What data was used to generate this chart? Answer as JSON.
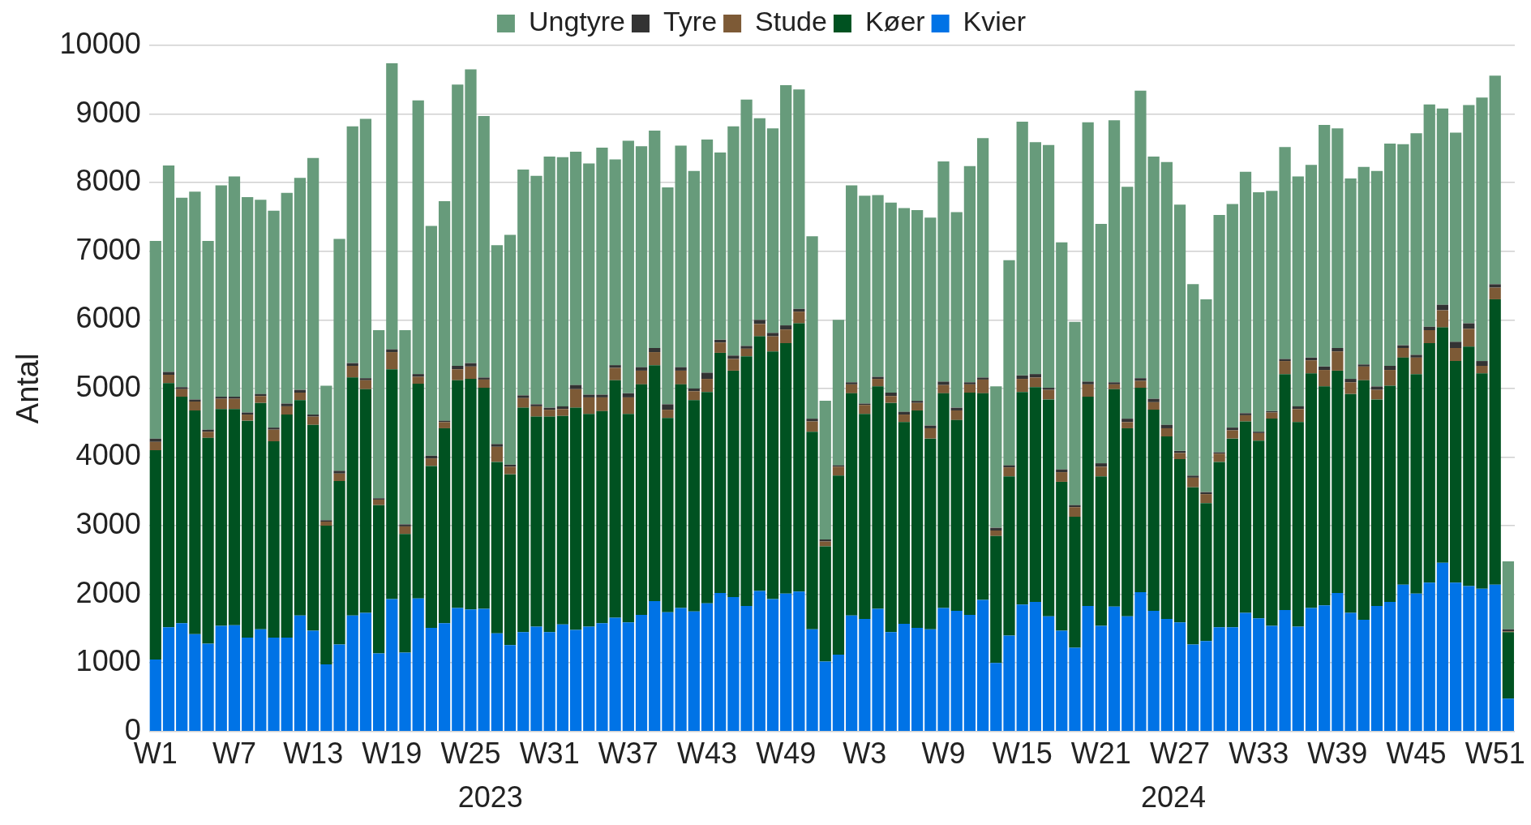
{
  "chart_data": {
    "type": "bar",
    "stacked": true,
    "ylabel": "Antal",
    "legend": "top",
    "grid": "y",
    "ylim": [
      0,
      10000
    ],
    "yticks": [
      0,
      1000,
      2000,
      3000,
      4000,
      5000,
      6000,
      7000,
      8000,
      9000,
      10000
    ],
    "annotations": [
      "2023",
      "2024"
    ],
    "categories": [
      "W1",
      null,
      null,
      null,
      null,
      null,
      "W7",
      null,
      null,
      null,
      null,
      null,
      "W13",
      null,
      null,
      null,
      null,
      null,
      "W19",
      null,
      null,
      null,
      null,
      null,
      "W25",
      null,
      null,
      null,
      null,
      null,
      "W31",
      null,
      null,
      null,
      null,
      null,
      "W37",
      null,
      null,
      null,
      null,
      null,
      "W43",
      null,
      null,
      null,
      null,
      null,
      "W49",
      null,
      null,
      null,
      null,
      null,
      "W3",
      null,
      null,
      null,
      null,
      null,
      "W9",
      null,
      null,
      null,
      null,
      null,
      "W15",
      null,
      null,
      null,
      null,
      null,
      "W21",
      null,
      null,
      null,
      null,
      null,
      "W27",
      null,
      null,
      null,
      null,
      null,
      "W33",
      null,
      null,
      null,
      null,
      null,
      "W39",
      null,
      null,
      null,
      null,
      null,
      "W45",
      null,
      null,
      null,
      null,
      null,
      "W51",
      null
    ],
    "series": [
      {
        "name": "Kvier",
        "color": "#0073e6",
        "values": [
          1050,
          1520,
          1580,
          1420,
          1280,
          1540,
          1550,
          1370,
          1490,
          1370,
          1370,
          1690,
          1470,
          980,
          1270,
          1690,
          1730,
          1140,
          1930,
          1150,
          1940,
          1510,
          1580,
          1800,
          1780,
          1790,
          1430,
          1260,
          1450,
          1530,
          1450,
          1560,
          1480,
          1530,
          1580,
          1660,
          1590,
          1700,
          1900,
          1740,
          1800,
          1750,
          1870,
          2020,
          1960,
          1830,
          2050,
          1930,
          2010,
          2040,
          1490,
          1020,
          1120,
          1690,
          1640,
          1790,
          1450,
          1570,
          1510,
          1490,
          1800,
          1760,
          1700,
          1920,
          1000,
          1400,
          1850,
          1890,
          1680,
          1470,
          1220,
          1830,
          1540,
          1820,
          1680,
          2030,
          1760,
          1640,
          1590,
          1270,
          1320,
          1520,
          1520,
          1730,
          1650,
          1540,
          1770,
          1530,
          1800,
          1840,
          2020,
          1730,
          1630,
          1830,
          1890,
          2140,
          2010,
          2170,
          2460,
          2170,
          2120,
          2080,
          2140,
          480
        ]
      },
      {
        "name": "Køer",
        "color": "#005221",
        "values": [
          3050,
          3560,
          3300,
          3260,
          3000,
          3160,
          3150,
          3160,
          3300,
          2860,
          3250,
          3140,
          3000,
          2020,
          2380,
          3470,
          3260,
          2160,
          3350,
          1730,
          3130,
          2360,
          2840,
          3320,
          3360,
          3220,
          2500,
          2490,
          3270,
          3060,
          3140,
          3040,
          3240,
          3100,
          3090,
          3460,
          3040,
          3360,
          3440,
          2830,
          3260,
          3080,
          3080,
          3500,
          3300,
          3640,
          3710,
          3610,
          3650,
          3910,
          2880,
          1680,
          2610,
          3240,
          2990,
          3240,
          3340,
          2940,
          3170,
          2780,
          3130,
          2780,
          3240,
          3010,
          1850,
          2320,
          3100,
          3130,
          3160,
          2170,
          1910,
          3050,
          2180,
          3170,
          2740,
          2980,
          2930,
          2660,
          2380,
          2290,
          2010,
          2410,
          2750,
          2790,
          2590,
          3020,
          3440,
          2980,
          3420,
          3190,
          3240,
          3190,
          3490,
          3010,
          3150,
          3310,
          3200,
          3490,
          3430,
          3230,
          3490,
          3140,
          4160,
          970
        ]
      },
      {
        "name": "Stude",
        "color": "#7d5a36",
        "values": [
          120,
          120,
          110,
          130,
          90,
          150,
          150,
          90,
          100,
          170,
          120,
          110,
          120,
          60,
          110,
          170,
          130,
          80,
          250,
          110,
          100,
          110,
          90,
          160,
          180,
          120,
          220,
          110,
          140,
          150,
          100,
          100,
          270,
          240,
          200,
          180,
          240,
          200,
          190,
          120,
          200,
          130,
          190,
          150,
          170,
          110,
          180,
          220,
          200,
          170,
          150,
          70,
          130,
          130,
          130,
          110,
          100,
          110,
          110,
          150,
          120,
          140,
          120,
          200,
          80,
          130,
          190,
          140,
          140,
          140,
          140,
          180,
          140,
          70,
          90,
          100,
          110,
          120,
          90,
          140,
          130,
          120,
          120,
          90,
          110,
          90,
          190,
          190,
          190,
          240,
          280,
          170,
          200,
          140,
          230,
          140,
          240,
          190,
          250,
          190,
          260,
          110,
          170,
          10
        ]
      },
      {
        "name": "Tyre",
        "color": "#333333",
        "values": [
          50,
          40,
          30,
          30,
          30,
          30,
          30,
          30,
          30,
          30,
          40,
          40,
          30,
          20,
          40,
          40,
          30,
          20,
          40,
          30,
          40,
          40,
          20,
          50,
          50,
          30,
          40,
          30,
          40,
          30,
          30,
          40,
          60,
          40,
          40,
          40,
          60,
          50,
          60,
          80,
          50,
          40,
          90,
          40,
          50,
          40,
          60,
          50,
          60,
          40,
          40,
          30,
          20,
          30,
          20,
          30,
          50,
          40,
          30,
          40,
          50,
          40,
          30,
          30,
          40,
          30,
          50,
          50,
          30,
          40,
          30,
          40,
          50,
          30,
          50,
          40,
          50,
          50,
          30,
          30,
          30,
          20,
          40,
          30,
          20,
          20,
          30,
          40,
          40,
          50,
          50,
          50,
          30,
          50,
          60,
          40,
          40,
          50,
          80,
          90,
          80,
          70,
          50,
          30
        ]
      },
      {
        "name": "Ungtyre",
        "color": "#679b7b",
        "values": [
          2880,
          3010,
          2760,
          3030,
          2750,
          3080,
          3210,
          3140,
          2830,
          3160,
          3070,
          3090,
          3740,
          1960,
          3380,
          3450,
          3780,
          2450,
          4170,
          2830,
          3990,
          3350,
          3200,
          4100,
          4280,
          3810,
          2900,
          3350,
          3290,
          3330,
          3660,
          3630,
          3400,
          3370,
          3600,
          3000,
          3680,
          3220,
          3170,
          3160,
          3230,
          3170,
          3400,
          2730,
          3340,
          3590,
          2940,
          2980,
          3500,
          3200,
          2660,
          2020,
          2120,
          2870,
          3030,
          2650,
          2770,
          2970,
          2780,
          3030,
          3210,
          2850,
          3150,
          3490,
          2060,
          2990,
          3700,
          3380,
          3540,
          3310,
          2670,
          3780,
          3490,
          3820,
          3380,
          4190,
          3530,
          3830,
          3590,
          2790,
          2810,
          3460,
          3260,
          3520,
          3490,
          3210,
          3090,
          3350,
          2810,
          3520,
          3200,
          2920,
          2880,
          3140,
          3240,
          2930,
          3230,
          3240,
          2860,
          3050,
          3180,
          3840,
          3040,
          990
        ]
      }
    ]
  }
}
